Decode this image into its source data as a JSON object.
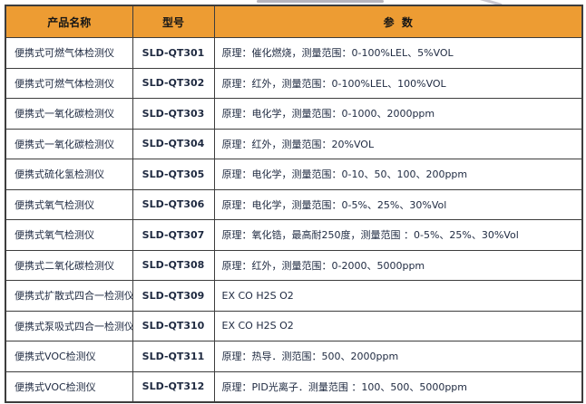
{
  "table": {
    "columns": [
      {
        "key": "product",
        "label": "产品名称"
      },
      {
        "key": "model",
        "label": "型号"
      },
      {
        "key": "params",
        "label": "参  数"
      }
    ],
    "rows": [
      {
        "product": "便携式可燃气体检测仪",
        "model": "SLD-QT301",
        "params": "原理：催化燃烧，测量范围：0-100%LEL、5%VOL"
      },
      {
        "product": "便携式可燃气体检测仪",
        "model": "SLD-QT302",
        "params": "原理：红外，测量范围：0-100%LEL、100%VOL"
      },
      {
        "product": "便携式一氧化碳检测仪",
        "model": "SLD-QT303",
        "params": "原理：电化学，测量范围：0-1000、2000ppm"
      },
      {
        "product": "便携式一氧化碳检测仪",
        "model": "SLD-QT304",
        "params": "原理：红外，测量范围：20%VOL"
      },
      {
        "product": "便携式硫化氢检测仪",
        "model": "SLD-QT305",
        "params": "原理：电化学，测量范围：0-10、50、100、200ppm"
      },
      {
        "product": "便携式氧气检测仪",
        "model": "SLD-QT306",
        "params": "原理：电化学，测量范围：0-5%、25%、30%Vol"
      },
      {
        "product": "便携式氧气检测仪",
        "model": "SLD-QT307",
        "params": "原理：氧化锆，最高耐250度，测量范围 ：0-5%、25%、30%Vol"
      },
      {
        "product": "便携式二氧化碳检测仪",
        "model": "SLD-QT308",
        "params": "原理：红外，测量范围：0-2000、5000ppm"
      },
      {
        "product": "便携式扩散式四合一检测仪",
        "model": "SLD-QT309",
        "params": "EX CO H2S O2"
      },
      {
        "product": "便携式泵吸式四合一检测仪",
        "model": "SLD-QT310",
        "params": "EX CO H2S O2"
      },
      {
        "product": "便携式VOC检测仪",
        "model": "SLD-QT311",
        "params": "原理：热导．测范围：500、2000ppm"
      },
      {
        "product": "便携式VOC检测仪",
        "model": "SLD-QT312",
        "params": "原理：PID光离子．测量范围 ：100、500、5000ppm"
      }
    ],
    "colors": {
      "header_bg": "#ED9C33",
      "border": "#3d3d3d",
      "body_text": "#1e2940",
      "header_text": "#161616"
    }
  }
}
